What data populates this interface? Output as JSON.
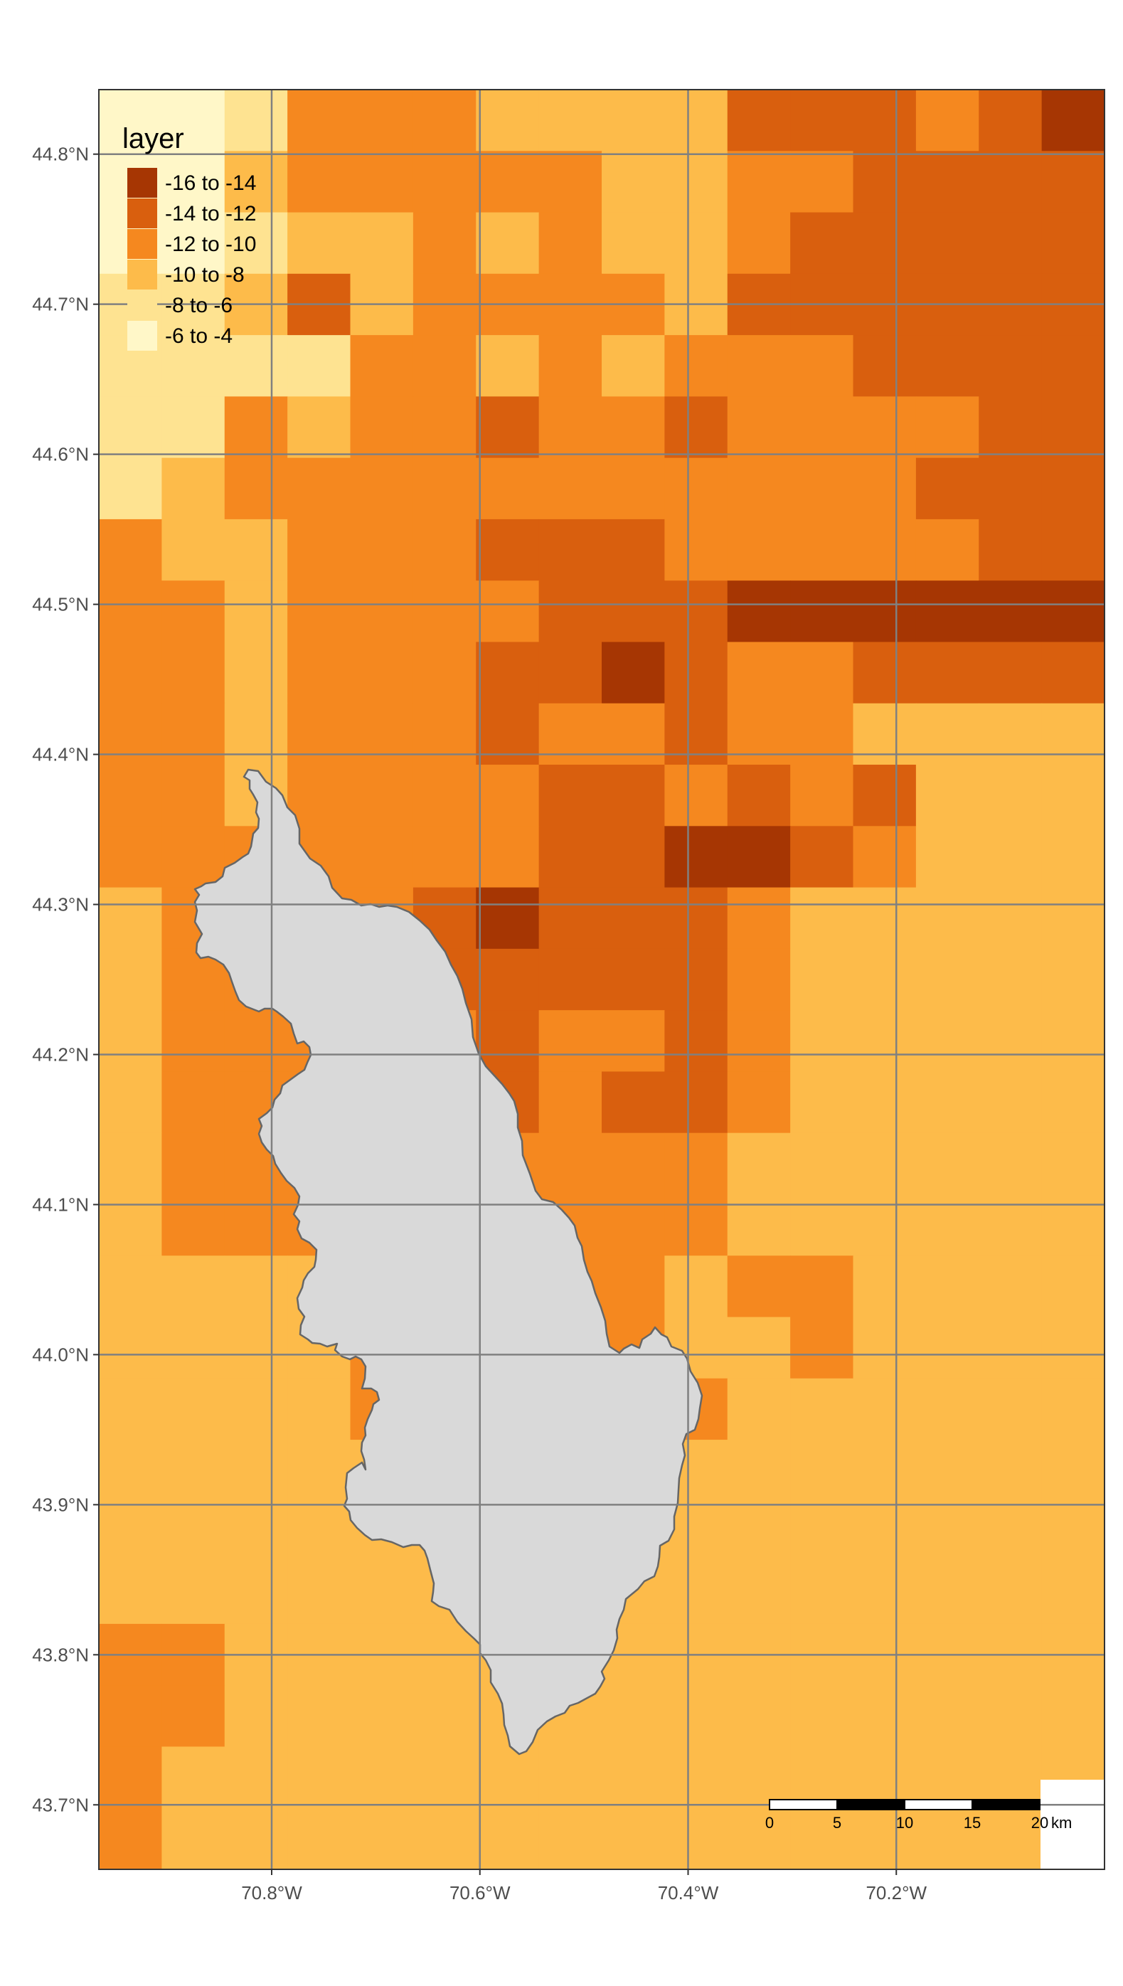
{
  "legend": {
    "title": "layer",
    "classes": [
      {
        "label": "-16 to -14",
        "color": "#a63603"
      },
      {
        "label": "-14 to -12",
        "color": "#d95f0e"
      },
      {
        "label": "-12 to -10",
        "color": "#f5881f"
      },
      {
        "label": "-10 to -8",
        "color": "#fdbb4a"
      },
      {
        "label": "-8 to -6",
        "color": "#fee391"
      },
      {
        "label": "-6 to -4",
        "color": "#fff7c8"
      }
    ]
  },
  "axes": {
    "x_ticks": [
      {
        "value": -70.8,
        "label": "70.8°W"
      },
      {
        "value": -70.6,
        "label": "70.6°W"
      },
      {
        "value": -70.4,
        "label": "70.4°W"
      },
      {
        "value": -70.2,
        "label": "70.2°W"
      }
    ],
    "y_ticks": [
      {
        "value": 43.7,
        "label": "43.7°N"
      },
      {
        "value": 43.8,
        "label": "43.8°N"
      },
      {
        "value": 43.9,
        "label": "43.9°N"
      },
      {
        "value": 44.0,
        "label": "44.0°N"
      },
      {
        "value": 44.1,
        "label": "44.1°N"
      },
      {
        "value": 44.2,
        "label": "44.2°N"
      },
      {
        "value": 44.3,
        "label": "44.3°N"
      },
      {
        "value": 44.4,
        "label": "44.4°N"
      },
      {
        "value": 44.5,
        "label": "44.5°N"
      },
      {
        "value": 44.6,
        "label": "44.6°N"
      },
      {
        "value": 44.7,
        "label": "44.7°N"
      },
      {
        "value": 44.8,
        "label": "44.8°N"
      }
    ],
    "lon_range": [
      -70.966,
      -70.0
    ],
    "lat_range": [
      43.657,
      44.843
    ]
  },
  "scale_bar": {
    "ticks": [
      "0",
      "5",
      "10",
      "15",
      "20"
    ],
    "unit": "km"
  },
  "colors": {
    "graticule": "#808080",
    "watershed_fill": "#d9d9d9",
    "watershed_stroke": "#666666",
    "nodata": "#ffffff"
  },
  "raster": {
    "legend": "row codes: class index 0=-16..-14 (darkest) to 5=-6..-4 (lightest); '.' = no data",
    "rows": [
      "5542223333111210",
      "5532222233221111",
      "5543323233211111",
      "4431322223111111",
      "4444223232221111",
      "4423221221222211",
      "4322222222222111",
      "2332221112222211",
      "2232222111000000",
      "2232221101221111",
      "2232221221223333",
      "2232222112121333",
      "2222222110012333",
      "3222210111233333",
      "3222211111233333",
      "3222221221233333",
      "3222221211233333",
      "3222212222333333",
      "3222222222333333",
      "3333222223223333",
      "3333222223323333",
      "3333223332333333",
      "3333322233333333",
      "3333332233333333",
      "3333333333333333",
      "2233333333333333",
      "2233333333333333",
      "2333333333333333",
      "2333333333333333"
    ]
  }
}
